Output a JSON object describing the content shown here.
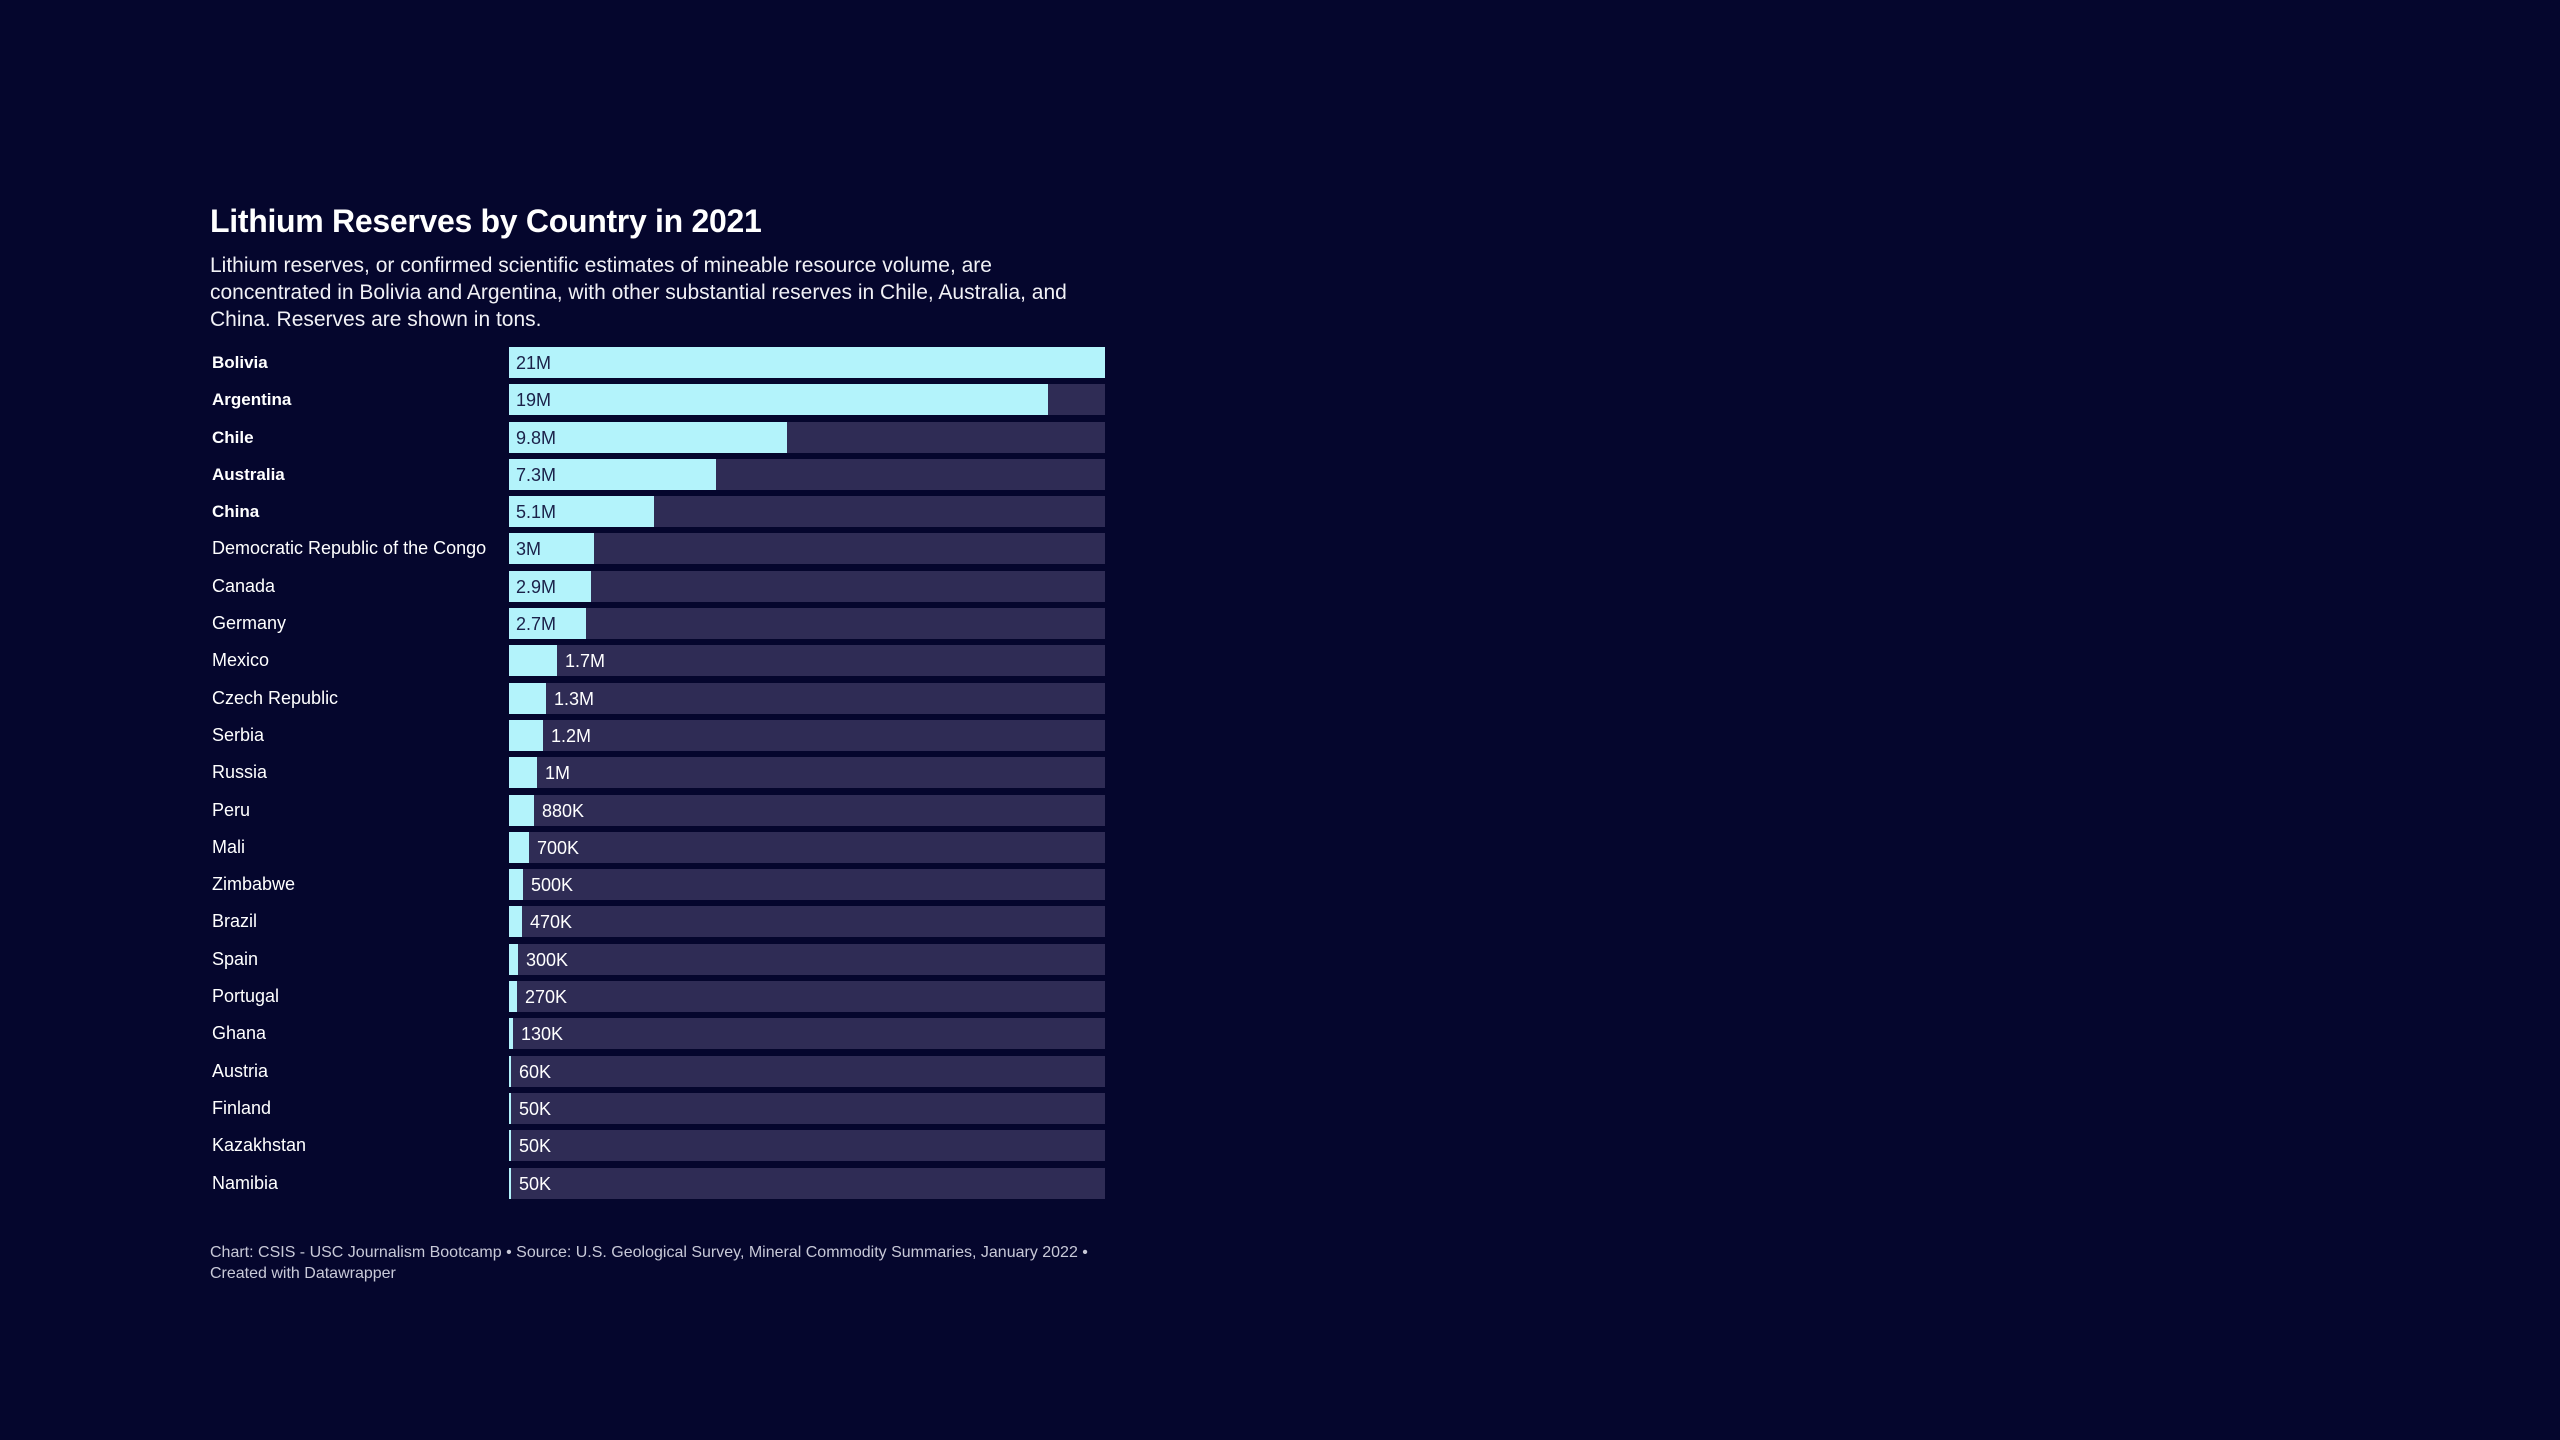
{
  "colors": {
    "background": "#05062d",
    "bar": "#b3f3fb",
    "track": "#2f2c55"
  },
  "chart_data": {
    "type": "bar",
    "orientation": "horizontal",
    "title": "Lithium Reserves by Country in 2021",
    "subtitle": "Lithium reserves, or confirmed scientific estimates of mineable resource volume, are concentrated in Bolivia and Argentina, with other substantial reserves in Chile, Australia, and China. Reserves are shown in tons.",
    "xlim": [
      0,
      21000000
    ],
    "categories": [
      "Bolivia",
      "Argentina",
      "Chile",
      "Australia",
      "China",
      "Democratic Republic of the Congo",
      "Canada",
      "Germany",
      "Mexico",
      "Czech Republic",
      "Serbia",
      "Russia",
      "Peru",
      "Mali",
      "Zimbabwe",
      "Brazil",
      "Spain",
      "Portugal",
      "Ghana",
      "Austria",
      "Finland",
      "Kazakhstan",
      "Namibia"
    ],
    "values": [
      21000000,
      19000000,
      9800000,
      7300000,
      5100000,
      3000000,
      2900000,
      2700000,
      1700000,
      1300000,
      1200000,
      1000000,
      880000,
      700000,
      500000,
      470000,
      300000,
      270000,
      130000,
      60000,
      50000,
      50000,
      50000
    ],
    "value_labels": [
      "21M",
      "19M",
      "9.8M",
      "7.3M",
      "5.1M",
      "3M",
      "2.9M",
      "2.7M",
      "1.7M",
      "1.3M",
      "1.2M",
      "1M",
      "880K",
      "700K",
      "500K",
      "470K",
      "300K",
      "270K",
      "130K",
      "60K",
      "50K",
      "50K",
      "50K"
    ],
    "bold_categories": [
      "Bolivia",
      "Argentina",
      "Chile",
      "Australia",
      "China"
    ],
    "source": "Chart: CSIS - USC Journalism Bootcamp • Source: U.S. Geological Survey, Mineral Commodity Summaries, January 2022 • Created with Datawrapper"
  }
}
